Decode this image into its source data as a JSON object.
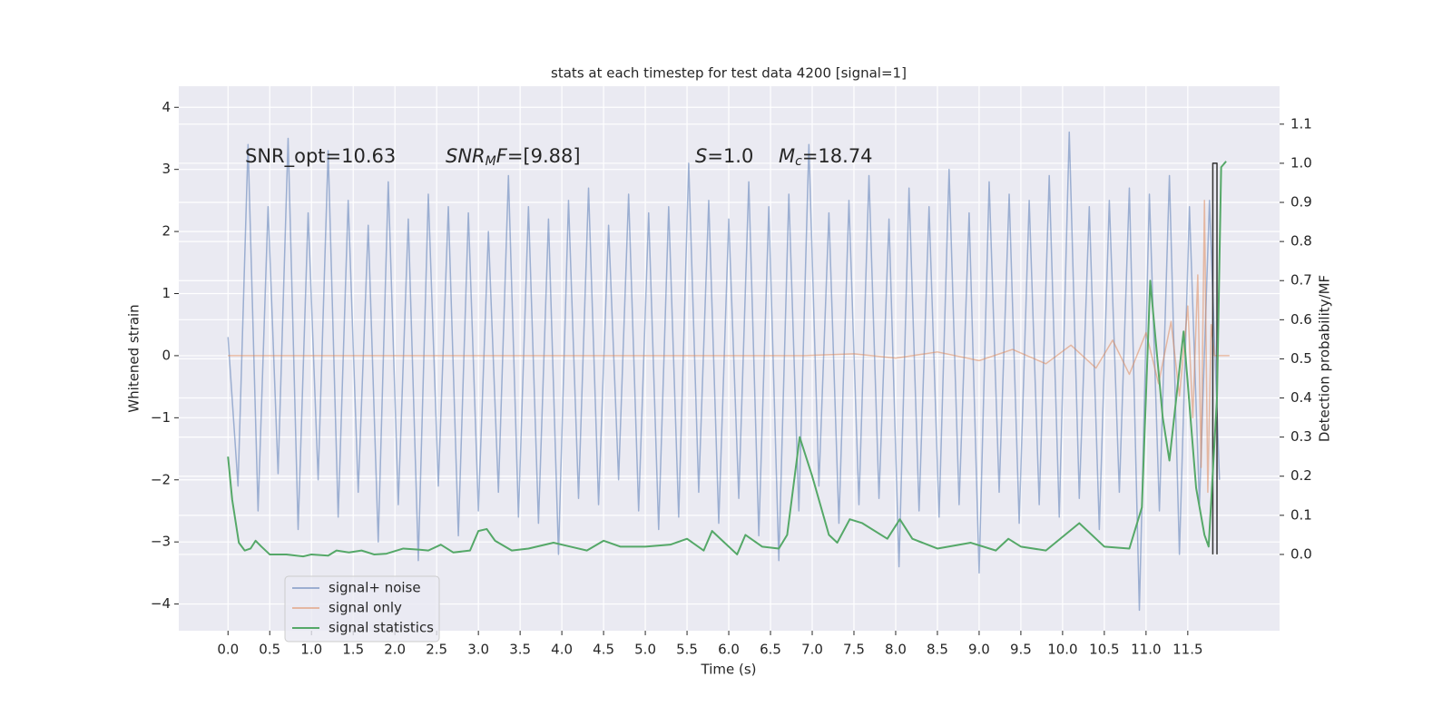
{
  "chart_data": {
    "type": "line",
    "title": "stats at each timestep for test data 4200 [signal=1]",
    "xlabel": "Time (s)",
    "ylabel": "Whitened strain",
    "y2label": "Detection probability/MF",
    "xlim": [
      -0.59,
      12.6
    ],
    "ylim": [
      -4.43,
      4.34
    ],
    "y2lim": [
      -0.195,
      1.197
    ],
    "xticks": [
      {
        "value": 0,
        "label": "0.0"
      },
      0.5,
      {
        "value": 1,
        "label": "1.0"
      },
      1.5,
      {
        "value": 2,
        "label": "2.0"
      },
      2.5,
      {
        "value": 3,
        "label": "3.0"
      },
      3.5,
      {
        "value": 4,
        "label": "4.0"
      },
      4.5,
      {
        "value": 5,
        "label": "5.0"
      },
      5.5,
      {
        "value": 6,
        "label": "6.0"
      },
      6.5,
      {
        "value": 7,
        "label": "7.0"
      },
      7.5,
      {
        "value": 8,
        "label": "8.0"
      },
      8.5,
      {
        "value": 9,
        "label": "9.0"
      },
      9.5,
      {
        "value": 10,
        "label": "10.0"
      },
      10.5,
      {
        "value": 11,
        "label": "11.0"
      },
      11.5
    ],
    "yticks": [
      {
        "value": -4,
        "label": "−4"
      },
      {
        "value": -3,
        "label": "−3"
      },
      {
        "value": -2,
        "label": "−2"
      },
      {
        "value": -1,
        "label": "−1"
      },
      0,
      1,
      2,
      3,
      4
    ],
    "y2ticks": [
      {
        "value": 0,
        "label": "0.0"
      },
      0.1,
      0.2,
      0.3,
      0.4,
      0.5,
      0.6,
      0.7,
      0.8,
      0.9,
      {
        "value": 1,
        "label": "1.0"
      },
      1.1
    ],
    "grid": true,
    "legend": "lower left",
    "annotations": [
      [
        {
          "t": "SNR_opt=10.63"
        }
      ],
      [
        {
          "t": "SNR",
          "i": true
        },
        {
          "t": "M",
          "i": true,
          "sub": true
        },
        {
          "t": "F",
          "i": true
        },
        {
          "t": "=[9.88]"
        }
      ],
      [
        {
          "t": "S",
          "i": true
        },
        {
          "t": "=1.0"
        }
      ],
      [
        {
          "t": "M",
          "i": true
        },
        {
          "t": "c",
          "i": true,
          "sub": true
        },
        {
          "t": "=18.74"
        }
      ]
    ],
    "series": [
      {
        "name": "signal+ noise",
        "color": "#4c72b0",
        "opacity": 0.5,
        "x": [
          0,
          0.12,
          0.24,
          0.36,
          0.48,
          0.6,
          0.72,
          0.84,
          0.96,
          1.08,
          1.2,
          1.32,
          1.44,
          1.56,
          1.68,
          1.8,
          1.92,
          2.04,
          2.16,
          2.28,
          2.4,
          2.52,
          2.64,
          2.76,
          2.88,
          3,
          3.12,
          3.24,
          3.36,
          3.48,
          3.6,
          3.72,
          3.84,
          3.96,
          4.08,
          4.2,
          4.32,
          4.44,
          4.56,
          4.68,
          4.8,
          4.92,
          5.04,
          5.16,
          5.28,
          5.4,
          5.52,
          5.64,
          5.76,
          5.88,
          6,
          6.12,
          6.24,
          6.36,
          6.48,
          6.6,
          6.72,
          6.84,
          6.96,
          7.08,
          7.2,
          7.32,
          7.44,
          7.56,
          7.68,
          7.8,
          7.92,
          8.04,
          8.16,
          8.28,
          8.4,
          8.52,
          8.64,
          8.76,
          8.88,
          9,
          9.12,
          9.24,
          9.36,
          9.48,
          9.6,
          9.72,
          9.84,
          9.96,
          10.08,
          10.2,
          10.32,
          10.44,
          10.56,
          10.68,
          10.8,
          10.92,
          11.04,
          11.16,
          11.28,
          11.4,
          11.52,
          11.64,
          11.76,
          11.88
        ],
        "values": [
          0.3,
          -2.1,
          3.4,
          -2.5,
          2.4,
          -1.9,
          3.5,
          -2.8,
          2.3,
          -2.0,
          3.3,
          -2.6,
          2.5,
          -2.2,
          2.1,
          -3.0,
          2.8,
          -2.4,
          2.2,
          -3.3,
          2.6,
          -2.1,
          2.4,
          -2.9,
          2.3,
          -2.5,
          2.0,
          -2.2,
          2.9,
          -2.6,
          2.4,
          -2.7,
          2.2,
          -3.2,
          2.5,
          -2.3,
          2.7,
          -2.4,
          2.1,
          -2.0,
          2.6,
          -2.5,
          2.3,
          -2.8,
          2.4,
          -2.6,
          3.1,
          -2.2,
          2.5,
          -2.7,
          2.2,
          -2.3,
          2.8,
          -2.9,
          2.4,
          -3.3,
          2.6,
          -2.5,
          3.4,
          -2.1,
          2.3,
          -2.7,
          2.5,
          -2.4,
          2.9,
          -2.3,
          2.2,
          -3.4,
          2.7,
          -2.5,
          2.4,
          -2.6,
          3.0,
          -2.4,
          2.3,
          -3.5,
          2.8,
          -2.2,
          2.6,
          -2.7,
          2.5,
          -2.4,
          2.9,
          -2.6,
          3.6,
          -2.3,
          2.4,
          -2.8,
          2.5,
          -2.2,
          2.7,
          -4.1,
          2.6,
          -2.5,
          2.9,
          -3.2,
          2.4,
          -2.4,
          2.5,
          -2.0
        ]
      },
      {
        "name": "signal only",
        "color": "#dd8452",
        "opacity": 0.5,
        "x": [
          0,
          6.9,
          7.5,
          8,
          8.5,
          9,
          9.4,
          9.8,
          10.1,
          10.4,
          10.6,
          10.8,
          11.0,
          11.15,
          11.3,
          11.4,
          11.5,
          11.56,
          11.62,
          11.66,
          11.7,
          11.74,
          11.78,
          11.82,
          11.9,
          12.0
        ],
        "values": [
          0,
          0,
          0.03,
          -0.04,
          0.06,
          -0.08,
          0.1,
          -0.13,
          0.17,
          -0.2,
          0.25,
          -0.3,
          0.37,
          -0.45,
          0.55,
          -0.65,
          0.8,
          -1.0,
          1.3,
          -1.8,
          2.5,
          -2.2,
          0.5,
          0,
          0,
          0
        ]
      },
      {
        "color": "#333333",
        "opacity": 1,
        "x": [
          11.8,
          11.8,
          11.85,
          11.85
        ],
        "values": [
          -3.2,
          3.1,
          3.1,
          -3.2
        ]
      },
      {
        "name": "signal statistics",
        "color": "#55a868",
        "opacity": 1,
        "axis": "y2",
        "x": [
          0,
          0.05,
          0.13,
          0.2,
          0.27,
          0.33,
          0.4,
          0.5,
          0.7,
          0.9,
          1.0,
          1.2,
          1.3,
          1.45,
          1.6,
          1.75,
          1.9,
          2.1,
          2.3,
          2.4,
          2.55,
          2.7,
          2.9,
          3.0,
          3.1,
          3.2,
          3.4,
          3.6,
          3.9,
          4.1,
          4.3,
          4.5,
          4.7,
          5.0,
          5.3,
          5.5,
          5.7,
          5.8,
          5.9,
          6.1,
          6.2,
          6.4,
          6.6,
          6.7,
          6.85,
          7.0,
          7.2,
          7.3,
          7.45,
          7.6,
          7.9,
          8.05,
          8.2,
          8.5,
          8.9,
          9.2,
          9.35,
          9.5,
          9.8,
          10.2,
          10.5,
          10.8,
          10.95,
          11.05,
          11.2,
          11.28,
          11.45,
          11.6,
          11.7,
          11.75,
          11.85,
          11.9,
          11.96
        ],
        "values": [
          0.25,
          0.14,
          0.03,
          0.01,
          0.015,
          0.035,
          0.02,
          0.0,
          0.0,
          -0.005,
          0,
          -0.003,
          0.01,
          0.005,
          0.01,
          0,
          0.002,
          0.015,
          0.012,
          0.01,
          0.025,
          0.005,
          0.01,
          0.06,
          0.065,
          0.035,
          0.01,
          0.015,
          0.03,
          0.02,
          0.01,
          0.035,
          0.02,
          0.02,
          0.025,
          0.04,
          0.01,
          0.06,
          0.04,
          0.0,
          0.05,
          0.02,
          0.015,
          0.05,
          0.3,
          0.2,
          0.05,
          0.03,
          0.09,
          0.08,
          0.04,
          0.09,
          0.04,
          0.015,
          0.03,
          0.01,
          0.04,
          0.02,
          0.01,
          0.08,
          0.02,
          0.015,
          0.12,
          0.7,
          0.35,
          0.24,
          0.57,
          0.17,
          0.05,
          0.02,
          0.4,
          0.99,
          1.005
        ]
      }
    ]
  }
}
